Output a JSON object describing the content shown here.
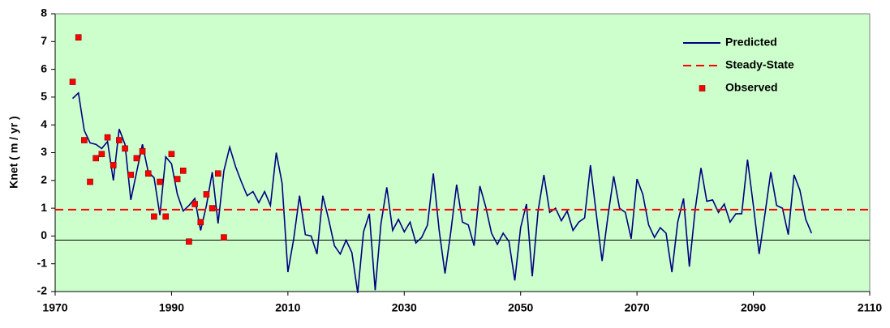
{
  "chart_data": {
    "type": "line",
    "ylabel": "Knet ( m / yr )",
    "xlim": [
      1970,
      2110
    ],
    "xticks": [
      1970,
      1990,
      2010,
      2030,
      2050,
      2070,
      2090,
      2110
    ],
    "ylim": [
      -2,
      8
    ],
    "yticks": [
      -2,
      -1,
      0,
      1,
      2,
      3,
      4,
      5,
      6,
      7,
      8
    ],
    "background": "#ccffcc",
    "zero_line": -0.15,
    "legend": "top-right",
    "series": [
      {
        "name": "Predicted",
        "color": "#000080",
        "style": "line",
        "x": [
          1973,
          1974,
          1975,
          1976,
          1977,
          1978,
          1979,
          1980,
          1981,
          1982,
          1983,
          1984,
          1985,
          1986,
          1987,
          1988,
          1989,
          1990,
          1991,
          1992,
          1993,
          1994,
          1995,
          1996,
          1997,
          1998,
          1999,
          2000,
          2001,
          2002,
          2003,
          2004,
          2005,
          2006,
          2007,
          2008,
          2009,
          2010,
          2011,
          2012,
          2013,
          2014,
          2015,
          2016,
          2017,
          2018,
          2019,
          2020,
          2021,
          2022,
          2023,
          2024,
          2025,
          2026,
          2027,
          2028,
          2029,
          2030,
          2031,
          2032,
          2033,
          2034,
          2035,
          2036,
          2037,
          2038,
          2039,
          2040,
          2041,
          2042,
          2043,
          2044,
          2045,
          2046,
          2047,
          2048,
          2049,
          2050,
          2051,
          2052,
          2053,
          2054,
          2055,
          2056,
          2057,
          2058,
          2059,
          2060,
          2061,
          2062,
          2063,
          2064,
          2065,
          2066,
          2067,
          2068,
          2069,
          2070,
          2071,
          2072,
          2073,
          2074,
          2075,
          2076,
          2077,
          2078,
          2079,
          2080,
          2081,
          2082,
          2083,
          2084,
          2085,
          2086,
          2087,
          2088,
          2089,
          2090,
          2091,
          2092,
          2093,
          2094,
          2095,
          2096,
          2097,
          2098,
          2099,
          2100
        ],
        "values": [
          4.95,
          5.15,
          3.8,
          3.35,
          3.3,
          3.15,
          3.4,
          2.0,
          3.85,
          3.3,
          1.3,
          2.3,
          3.3,
          2.3,
          2.1,
          0.75,
          2.85,
          2.6,
          1.5,
          0.9,
          1.1,
          1.35,
          0.2,
          1.1,
          2.3,
          0.45,
          2.35,
          3.2,
          2.5,
          1.95,
          1.45,
          1.6,
          1.2,
          1.6,
          1.1,
          3.0,
          1.9,
          -1.3,
          -0.1,
          1.45,
          0.05,
          0.0,
          -0.65,
          1.45,
          0.6,
          -0.35,
          -0.65,
          -0.15,
          -0.6,
          -2.05,
          0.15,
          0.8,
          -1.95,
          0.45,
          1.75,
          0.2,
          0.6,
          0.15,
          0.5,
          -0.25,
          -0.05,
          0.4,
          2.25,
          0.2,
          -1.35,
          0.15,
          1.85,
          0.5,
          0.4,
          -0.35,
          1.8,
          1.05,
          0.1,
          -0.3,
          0.1,
          -0.2,
          -1.6,
          0.3,
          1.15,
          -1.45,
          0.9,
          2.2,
          0.85,
          1.0,
          0.55,
          0.9,
          0.2,
          0.5,
          0.65,
          2.55,
          0.8,
          -0.9,
          0.7,
          2.15,
          1.0,
          0.85,
          -0.1,
          2.05,
          1.5,
          0.4,
          -0.05,
          0.3,
          0.1,
          -1.3,
          0.5,
          1.35,
          -1.1,
          0.95,
          2.45,
          1.25,
          1.3,
          0.85,
          1.15,
          0.5,
          0.8,
          0.8,
          2.75,
          1.1,
          -0.65,
          0.8,
          2.3,
          1.1,
          1.0,
          0.05,
          2.2,
          1.65,
          0.6,
          0.1
        ]
      },
      {
        "name": "Steady-State",
        "color": "#ff0000",
        "style": "hline",
        "values": [
          0.95
        ]
      },
      {
        "name": "Observed",
        "color": "#ff0000",
        "style": "points",
        "x": [
          1973,
          1974,
          1975,
          1976,
          1977,
          1978,
          1979,
          1980,
          1981,
          1982,
          1983,
          1984,
          1985,
          1986,
          1987,
          1988,
          1989,
          1990,
          1991,
          1992,
          1993,
          1994,
          1995,
          1996,
          1997,
          1998,
          1999
        ],
        "values": [
          5.55,
          7.15,
          3.45,
          1.95,
          2.8,
          2.95,
          3.55,
          2.55,
          3.45,
          3.15,
          2.2,
          2.8,
          3.05,
          2.25,
          0.7,
          1.95,
          0.7,
          2.95,
          2.05,
          2.35,
          -0.2,
          1.15,
          0.5,
          1.5,
          1.0,
          2.25,
          -0.05
        ]
      }
    ]
  }
}
